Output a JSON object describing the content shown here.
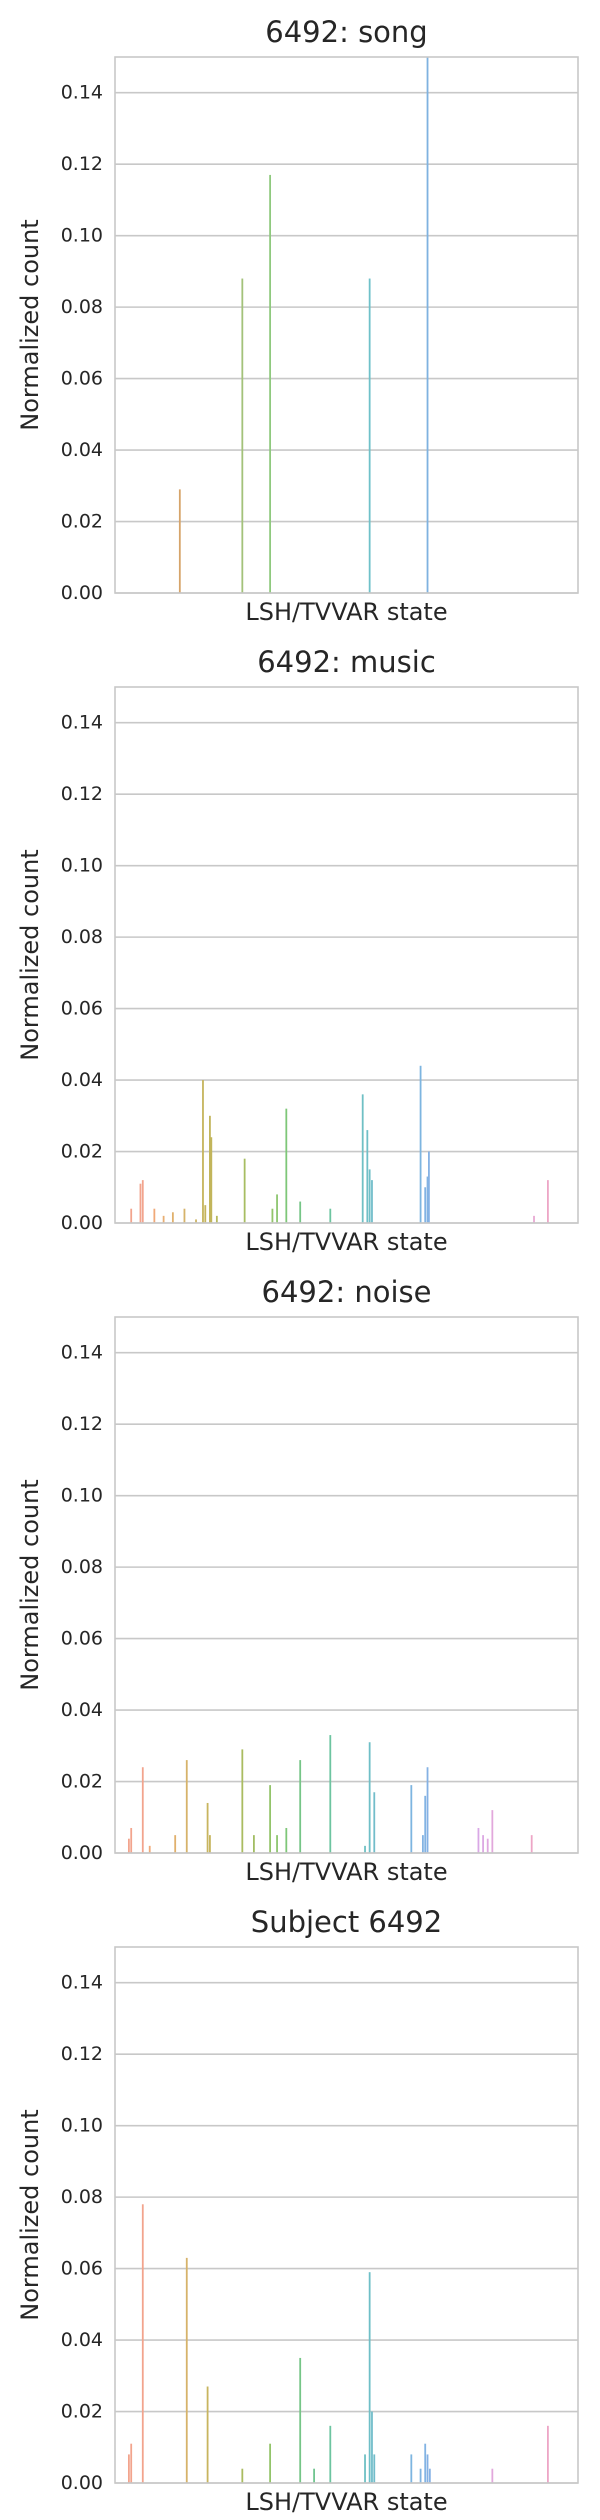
{
  "chart_data": [
    {
      "type": "bar",
      "title": "6492: song",
      "xlabel": "LSH/TVVAR state",
      "ylabel": "Normalized count",
      "ylim": [
        0,
        0.15
      ],
      "yticks": [
        "0.00",
        "0.02",
        "0.04",
        "0.06",
        "0.08",
        "0.10",
        "0.12",
        "0.14"
      ],
      "grid": true,
      "bars": [
        {
          "x": 0.14,
          "y": 0.029,
          "color": "#d6a46a"
        },
        {
          "x": 0.275,
          "y": 0.088,
          "color": "#a3c27a"
        },
        {
          "x": 0.335,
          "y": 0.117,
          "color": "#8fc97e"
        },
        {
          "x": 0.55,
          "y": 0.088,
          "color": "#6fc1c9"
        },
        {
          "x": 0.675,
          "y": 0.15,
          "color": "#7fb2e0"
        }
      ]
    },
    {
      "type": "bar",
      "title": "6492: music",
      "xlabel": "LSH/TVVAR state",
      "ylabel": "Normalized count",
      "ylim": [
        0,
        0.15
      ],
      "yticks": [
        "0.00",
        "0.02",
        "0.04",
        "0.06",
        "0.08",
        "0.10",
        "0.12",
        "0.14"
      ],
      "grid": true,
      "bars": [
        {
          "x": 0.035,
          "y": 0.004,
          "color": "#f2a48d"
        },
        {
          "x": 0.055,
          "y": 0.011,
          "color": "#f2a48d"
        },
        {
          "x": 0.06,
          "y": 0.012,
          "color": "#f2a48d"
        },
        {
          "x": 0.085,
          "y": 0.004,
          "color": "#f0a978"
        },
        {
          "x": 0.105,
          "y": 0.002,
          "color": "#e8ae73"
        },
        {
          "x": 0.125,
          "y": 0.003,
          "color": "#e0b06c"
        },
        {
          "x": 0.15,
          "y": 0.004,
          "color": "#d6b36a"
        },
        {
          "x": 0.175,
          "y": 0.001,
          "color": "#ccb464"
        },
        {
          "x": 0.19,
          "y": 0.04,
          "color": "#c5b45c"
        },
        {
          "x": 0.195,
          "y": 0.005,
          "color": "#c5b45c"
        },
        {
          "x": 0.205,
          "y": 0.03,
          "color": "#c2b55a"
        },
        {
          "x": 0.208,
          "y": 0.024,
          "color": "#c2b55a"
        },
        {
          "x": 0.22,
          "y": 0.002,
          "color": "#b7b95c"
        },
        {
          "x": 0.28,
          "y": 0.018,
          "color": "#a7bd62"
        },
        {
          "x": 0.34,
          "y": 0.004,
          "color": "#93c46a"
        },
        {
          "x": 0.35,
          "y": 0.008,
          "color": "#8dc66f"
        },
        {
          "x": 0.37,
          "y": 0.032,
          "color": "#7ec778"
        },
        {
          "x": 0.4,
          "y": 0.006,
          "color": "#76c587"
        },
        {
          "x": 0.465,
          "y": 0.004,
          "color": "#6dc4a0"
        },
        {
          "x": 0.535,
          "y": 0.036,
          "color": "#6fc0c4"
        },
        {
          "x": 0.545,
          "y": 0.026,
          "color": "#6fbfc7"
        },
        {
          "x": 0.55,
          "y": 0.015,
          "color": "#6fbfc7"
        },
        {
          "x": 0.555,
          "y": 0.012,
          "color": "#72bdca"
        },
        {
          "x": 0.66,
          "y": 0.044,
          "color": "#7db5e0"
        },
        {
          "x": 0.67,
          "y": 0.01,
          "color": "#82b3e3"
        },
        {
          "x": 0.675,
          "y": 0.013,
          "color": "#82b3e3"
        },
        {
          "x": 0.678,
          "y": 0.02,
          "color": "#85b1e4"
        },
        {
          "x": 0.905,
          "y": 0.002,
          "color": "#e8a9d3"
        },
        {
          "x": 0.935,
          "y": 0.012,
          "color": "#eda6c6"
        }
      ]
    },
    {
      "type": "bar",
      "title": "6492: noise",
      "xlabel": "LSH/TVVAR state",
      "ylabel": "Normalized count",
      "ylim": [
        0,
        0.15
      ],
      "yticks": [
        "0.00",
        "0.02",
        "0.04",
        "0.06",
        "0.08",
        "0.10",
        "0.12",
        "0.14"
      ],
      "grid": true,
      "bars": [
        {
          "x": 0.03,
          "y": 0.004,
          "color": "#f2a48d"
        },
        {
          "x": 0.035,
          "y": 0.007,
          "color": "#f2a48d"
        },
        {
          "x": 0.06,
          "y": 0.024,
          "color": "#f2a48d"
        },
        {
          "x": 0.075,
          "y": 0.002,
          "color": "#f0a978"
        },
        {
          "x": 0.13,
          "y": 0.005,
          "color": "#e0b06c"
        },
        {
          "x": 0.155,
          "y": 0.026,
          "color": "#d6b36a"
        },
        {
          "x": 0.2,
          "y": 0.014,
          "color": "#c8b55f"
        },
        {
          "x": 0.205,
          "y": 0.005,
          "color": "#c5b45c"
        },
        {
          "x": 0.275,
          "y": 0.029,
          "color": "#aabc60"
        },
        {
          "x": 0.3,
          "y": 0.005,
          "color": "#a2bd63"
        },
        {
          "x": 0.335,
          "y": 0.019,
          "color": "#93c46a"
        },
        {
          "x": 0.35,
          "y": 0.005,
          "color": "#8dc66f"
        },
        {
          "x": 0.37,
          "y": 0.007,
          "color": "#7ec778"
        },
        {
          "x": 0.4,
          "y": 0.026,
          "color": "#76c587"
        },
        {
          "x": 0.465,
          "y": 0.033,
          "color": "#6dc4a0"
        },
        {
          "x": 0.54,
          "y": 0.002,
          "color": "#6fc0c4"
        },
        {
          "x": 0.55,
          "y": 0.031,
          "color": "#6fbfc7"
        },
        {
          "x": 0.56,
          "y": 0.017,
          "color": "#72bdca"
        },
        {
          "x": 0.64,
          "y": 0.019,
          "color": "#7db5e0"
        },
        {
          "x": 0.665,
          "y": 0.005,
          "color": "#82b3e3"
        },
        {
          "x": 0.67,
          "y": 0.016,
          "color": "#82b3e3"
        },
        {
          "x": 0.675,
          "y": 0.024,
          "color": "#85b1e4"
        },
        {
          "x": 0.785,
          "y": 0.007,
          "color": "#d9a8e6"
        },
        {
          "x": 0.795,
          "y": 0.005,
          "color": "#dca8e3"
        },
        {
          "x": 0.805,
          "y": 0.004,
          "color": "#dfa8e0"
        },
        {
          "x": 0.815,
          "y": 0.012,
          "color": "#e2a8dc"
        },
        {
          "x": 0.9,
          "y": 0.005,
          "color": "#eda6c6"
        }
      ]
    },
    {
      "type": "bar",
      "title": "Subject 6492",
      "xlabel": "LSH/TVVAR state",
      "ylabel": "Normalized count",
      "ylim": [
        0,
        0.15
      ],
      "yticks": [
        "0.00",
        "0.02",
        "0.04",
        "0.06",
        "0.08",
        "0.10",
        "0.12",
        "0.14"
      ],
      "grid": true,
      "bars": [
        {
          "x": 0.03,
          "y": 0.008,
          "color": "#f2a48d"
        },
        {
          "x": 0.035,
          "y": 0.011,
          "color": "#f2a48d"
        },
        {
          "x": 0.06,
          "y": 0.078,
          "color": "#f2a48d"
        },
        {
          "x": 0.155,
          "y": 0.063,
          "color": "#d6b36a"
        },
        {
          "x": 0.2,
          "y": 0.027,
          "color": "#c8b55f"
        },
        {
          "x": 0.275,
          "y": 0.004,
          "color": "#aabc60"
        },
        {
          "x": 0.335,
          "y": 0.011,
          "color": "#93c46a"
        },
        {
          "x": 0.4,
          "y": 0.035,
          "color": "#76c587"
        },
        {
          "x": 0.43,
          "y": 0.004,
          "color": "#70c590"
        },
        {
          "x": 0.465,
          "y": 0.016,
          "color": "#6dc4a0"
        },
        {
          "x": 0.54,
          "y": 0.008,
          "color": "#6fc0c4"
        },
        {
          "x": 0.55,
          "y": 0.059,
          "color": "#6fbfc7"
        },
        {
          "x": 0.555,
          "y": 0.02,
          "color": "#72bdca"
        },
        {
          "x": 0.56,
          "y": 0.008,
          "color": "#72bdca"
        },
        {
          "x": 0.64,
          "y": 0.008,
          "color": "#7db5e0"
        },
        {
          "x": 0.66,
          "y": 0.004,
          "color": "#80b4e1"
        },
        {
          "x": 0.67,
          "y": 0.011,
          "color": "#82b3e3"
        },
        {
          "x": 0.675,
          "y": 0.008,
          "color": "#85b1e4"
        },
        {
          "x": 0.68,
          "y": 0.004,
          "color": "#85b1e4"
        },
        {
          "x": 0.815,
          "y": 0.004,
          "color": "#e2a8dc"
        },
        {
          "x": 0.935,
          "y": 0.016,
          "color": "#eda6c6"
        }
      ]
    }
  ]
}
